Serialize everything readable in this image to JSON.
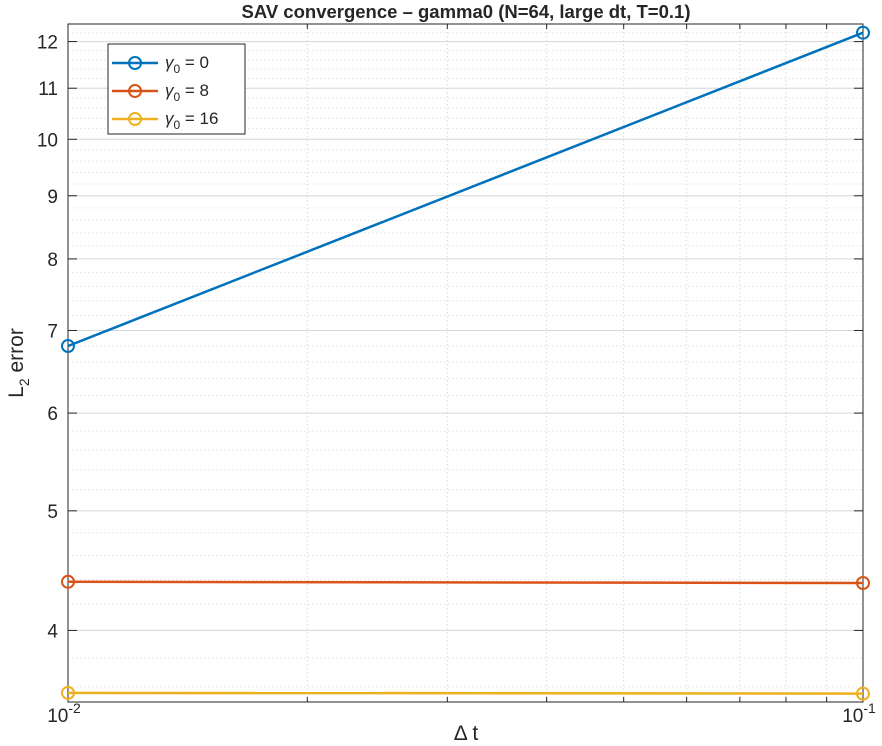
{
  "chart_data": {
    "type": "line",
    "title": "SAV convergence – gamma0 (N=64, large dt, T=0.1)",
    "xlabel": "Δ t",
    "ylabel": "L",
    "ylabel_sub": "2",
    "ylabel_rest": " error",
    "x_scale": "log",
    "y_scale": "log",
    "xlim": [
      0.01,
      0.1
    ],
    "ylim": [
      3.5,
      12.4
    ],
    "x_ticks": [
      {
        "value": 0.01,
        "base": "10",
        "exp": "-2"
      },
      {
        "value": 0.1,
        "base": "10",
        "exp": "-1"
      }
    ],
    "y_ticks": [
      4,
      5,
      6,
      7,
      8,
      9,
      10,
      11,
      12
    ],
    "grid": true,
    "minor_grid": true,
    "legend_position": "top-left",
    "series": [
      {
        "name_sym": "γ",
        "name_sub": "0",
        "name_rest": " = 0",
        "color": "#0072BD",
        "x": [
          0.01,
          0.1
        ],
        "y": [
          6.8,
          12.2
        ]
      },
      {
        "name_sym": "γ",
        "name_sub": "0",
        "name_rest": " = 8",
        "color": "#D95319",
        "x": [
          0.01,
          0.1
        ],
        "y": [
          4.38,
          4.37
        ]
      },
      {
        "name_sym": "γ",
        "name_sub": "0",
        "name_rest": " = 16",
        "color": "#EDB120",
        "x": [
          0.01,
          0.1
        ],
        "y": [
          3.56,
          3.555
        ]
      }
    ]
  }
}
